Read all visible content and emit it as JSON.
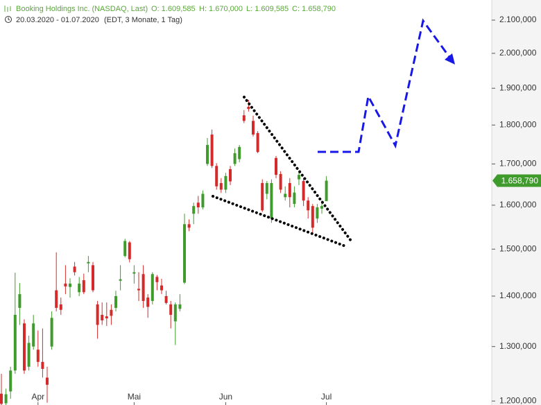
{
  "chart_data": {
    "type": "candlestick",
    "title": "Booking Holdings Inc. (NASDAQ, Last)",
    "header_values": [
      "O: 1.609,585",
      "H: 1.670,000",
      "L: 1.609,585",
      "C: 1.658,790"
    ],
    "subtitle": "20.03.2020 - 01.07.2020",
    "subtitle_note": "(EDT, 3 Monate, 1 Tag)",
    "categories": [
      null,
      null,
      null,
      null,
      null,
      null,
      null,
      null,
      "Apr",
      null,
      null,
      null,
      null,
      null,
      null,
      null,
      null,
      null,
      null,
      null,
      null,
      null,
      null,
      null,
      null,
      null,
      null,
      null,
      null,
      "Mai",
      null,
      null,
      null,
      null,
      null,
      null,
      null,
      null,
      null,
      null,
      null,
      null,
      null,
      null,
      null,
      null,
      null,
      null,
      null,
      "Jun",
      null,
      null,
      null,
      null,
      null,
      null,
      null,
      null,
      null,
      null,
      null,
      null,
      null,
      null,
      null,
      null,
      null,
      null,
      null,
      null,
      null,
      "Jul"
    ],
    "open": [
      1213,
      1196,
      1217,
      1255,
      1376,
      1345,
      1262,
      1300,
      1294,
      1271,
      1242,
      1300,
      1412,
      1383,
      1426,
      1419,
      1462,
      1408,
      1433,
      1469,
      1465,
      1383,
      1362,
      1359,
      1372,
      1376,
      1432,
      1485,
      1515,
      1447,
      1415,
      1446,
      1397,
      1390,
      1440,
      1422,
      1400,
      1383,
      1349,
      1374,
      1428,
      1556,
      1580,
      1606,
      1595,
      1700,
      1775,
      1695,
      1653,
      1637,
      1687,
      1700,
      1712,
      1826,
      1849,
      1811,
      1779,
      1653,
      1627,
      1569,
      1715,
      1675,
      1619,
      1653,
      1603,
      1662,
      1658,
      1611,
      1598,
      1569,
      1592,
      1609.585
    ],
    "high": [
      1249,
      1222,
      1262,
      1449,
      1427,
      1353,
      1321,
      1362,
      1331,
      1335,
      1262,
      1369,
      1493,
      1397,
      1465,
      1437,
      1472,
      1440,
      1447,
      1485,
      1472,
      1390,
      1387,
      1387,
      1383,
      1411,
      1465,
      1523,
      1518,
      1465,
      1450,
      1465,
      1404,
      1450,
      1444,
      1436,
      1411,
      1390,
      1387,
      1404,
      1580,
      1567,
      1606,
      1622,
      1635,
      1766,
      1788,
      1702,
      1665,
      1678,
      1695,
      1739,
      1748,
      1840,
      1868,
      1825,
      1784,
      1662,
      1658,
      1662,
      1720,
      1682,
      1645,
      1665,
      1645,
      1682,
      1665,
      1619,
      1603,
      1603,
      1611,
      1670
    ],
    "low": [
      1190,
      1190,
      1204,
      1249,
      1342,
      1249,
      1255,
      1294,
      1262,
      1242,
      1197,
      1294,
      1369,
      1362,
      1404,
      1397,
      1443,
      1400,
      1404,
      1450,
      1408,
      1315,
      1342,
      1340,
      1342,
      1369,
      1412,
      1482,
      1471,
      1426,
      1390,
      1376,
      1356,
      1383,
      1412,
      1404,
      1383,
      1335,
      1303,
      1369,
      1425,
      1540,
      1556,
      1580,
      1590,
      1695,
      1690,
      1637,
      1629,
      1629,
      1648,
      1695,
      1704,
      1805,
      1836,
      1770,
      1727,
      1584,
      1614,
      1559,
      1665,
      1629,
      1611,
      1595,
      1595,
      1648,
      1598,
      1569,
      1537,
      1559,
      1580,
      1609.585
    ],
    "close": [
      1195,
      1212,
      1255,
      1362,
      1404,
      1255,
      1307,
      1345,
      1271,
      1258,
      1229,
      1356,
      1376,
      1372,
      1420,
      1426,
      1450,
      1426,
      1408,
      1472,
      1412,
      1342,
      1351,
      1355,
      1360,
      1400,
      1435,
      1518,
      1478,
      1450,
      1412,
      1390,
      1378,
      1446,
      1429,
      1412,
      1386,
      1362,
      1383,
      1383,
      1556,
      1548,
      1598,
      1595,
      1627,
      1748,
      1695,
      1645,
      1637,
      1670,
      1657,
      1727,
      1743,
      1811,
      1843,
      1775,
      1730,
      1588,
      1653,
      1653,
      1673,
      1637,
      1627,
      1619,
      1630,
      1673,
      1611,
      1588,
      1548,
      1595,
      1598,
      1658.79
    ],
    "last_label": "1.658,790",
    "up_color": "#3f9b2c",
    "down_color": "#d42a2a",
    "log_scale": true,
    "ylim": [
      1193,
      2163
    ],
    "yticks": [
      {
        "value": 1200,
        "label": "1.200,000"
      },
      {
        "value": 1300,
        "label": "1.300,000"
      },
      {
        "value": 1400,
        "label": "1.400,000"
      },
      {
        "value": 1500,
        "label": "1.500,000"
      },
      {
        "value": 1600,
        "label": "1.600,000"
      },
      {
        "value": 1700,
        "label": "1.700,000"
      },
      {
        "value": 1800,
        "label": "1.800,000"
      },
      {
        "value": 1900,
        "label": "1.900,000"
      },
      {
        "value": 2000,
        "label": "2.000,000"
      },
      {
        "value": 2100,
        "label": "2.100,000"
      }
    ]
  }
}
